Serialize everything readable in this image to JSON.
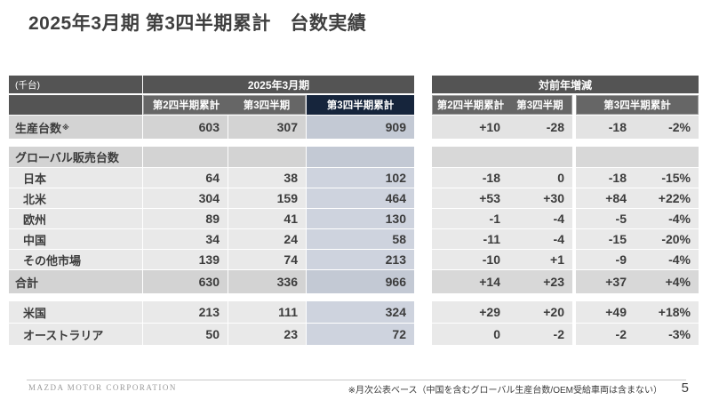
{
  "title": "2025年3月期 第3四半期累計　台数実績",
  "unit_label": "(千台)",
  "left_table": {
    "group_header": "2025年3月期",
    "columns": [
      "第2四半期累計",
      "第3四半期",
      "第3四半期累計"
    ]
  },
  "right_table": {
    "group_header": "対前年増減",
    "columns": [
      "第2四半期累計",
      "第3四半期",
      "第3四半期累計"
    ]
  },
  "rows": [
    {
      "label": "生産台数",
      "note": "※",
      "type": "production",
      "gap_before": false,
      "left": [
        "603",
        "307",
        "909"
      ],
      "right": [
        "+10",
        "-28",
        "-18",
        "-2%"
      ]
    },
    {
      "label": "グローバル販売台数",
      "type": "group-header",
      "gap_before": true,
      "left": [
        "",
        "",
        ""
      ],
      "right": [
        "",
        "",
        "",
        ""
      ]
    },
    {
      "label": "日本",
      "type": "region",
      "gap_before": false,
      "left": [
        "64",
        "38",
        "102"
      ],
      "right": [
        "-18",
        "0",
        "-18",
        "-15%"
      ]
    },
    {
      "label": "北米",
      "type": "region",
      "gap_before": false,
      "left": [
        "304",
        "159",
        "464"
      ],
      "right": [
        "+53",
        "+30",
        "+84",
        "+22%"
      ]
    },
    {
      "label": "欧州",
      "type": "region",
      "gap_before": false,
      "left": [
        "89",
        "41",
        "130"
      ],
      "right": [
        "-1",
        "-4",
        "-5",
        "-4%"
      ]
    },
    {
      "label": "中国",
      "type": "region",
      "gap_before": false,
      "left": [
        "34",
        "24",
        "58"
      ],
      "right": [
        "-11",
        "-4",
        "-15",
        "-20%"
      ]
    },
    {
      "label": "その他市場",
      "type": "region",
      "gap_before": false,
      "left": [
        "139",
        "74",
        "213"
      ],
      "right": [
        "-10",
        "+1",
        "-9",
        "-4%"
      ]
    },
    {
      "label": "合計",
      "type": "total",
      "gap_before": false,
      "left": [
        "630",
        "336",
        "966"
      ],
      "right": [
        "+14",
        "+23",
        "+37",
        "+4%"
      ]
    },
    {
      "label": "米国",
      "type": "market",
      "gap_before": true,
      "left": [
        "213",
        "111",
        "324"
      ],
      "right": [
        "+29",
        "+20",
        "+49",
        "+18%"
      ]
    },
    {
      "label": "オーストラリア",
      "type": "market",
      "gap_before": false,
      "left": [
        "50",
        "23",
        "72"
      ],
      "right": [
        "0",
        "-2",
        "-2",
        "-3%"
      ]
    }
  ],
  "footer": {
    "company": "MAZDA MOTOR CORPORATION",
    "footnote": "※月次公表ベース（中国を含むグローバル生産台数/OEM受給車両は含まない）",
    "page_number": "5"
  },
  "colors": {
    "header_gray": "#545454",
    "subheader_gray": "#666666",
    "highlight_navy": "#16253c",
    "highlight_column_bg": "#ced3de",
    "section_row_bg": "#d3d3d3",
    "regular_row_bg": "#e9e9e9"
  }
}
